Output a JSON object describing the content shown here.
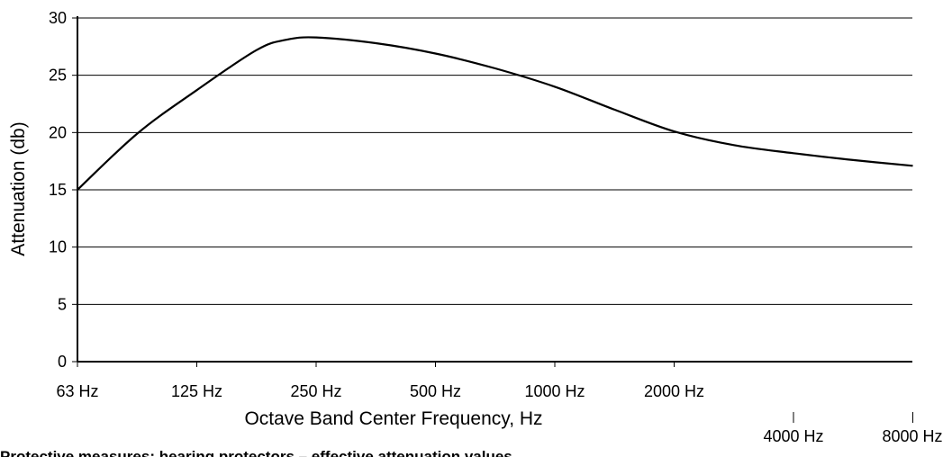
{
  "chart_data": {
    "type": "line",
    "title": "",
    "xlabel": "Octave Band Center Frequency, Hz",
    "ylabel": "Attenuation (db)",
    "ylim": [
      0,
      30
    ],
    "yticks": [
      "0",
      "5",
      "10",
      "15",
      "20",
      "25",
      "30"
    ],
    "grid": true,
    "categories": [
      "63 Hz",
      "125 Hz",
      "250 Hz",
      "500 Hz",
      "1000 Hz",
      "2000 Hz",
      "4000 Hz",
      "8000 Hz"
    ],
    "series": [
      {
        "x": [
          0,
          0.5,
          1,
          1.5,
          1.75,
          2,
          2.5,
          3,
          3.5,
          4,
          4.5,
          5,
          5.5,
          6,
          6.5,
          7
        ],
        "values": [
          15,
          19.9,
          23.7,
          27.2,
          28.1,
          28.3,
          27.8,
          26.9,
          25.6,
          24.0,
          22.0,
          20.1,
          18.9,
          18.2,
          17.6,
          17.1
        ]
      }
    ]
  },
  "caption": "Protective measures: hearing protectors – effective attenuation values"
}
